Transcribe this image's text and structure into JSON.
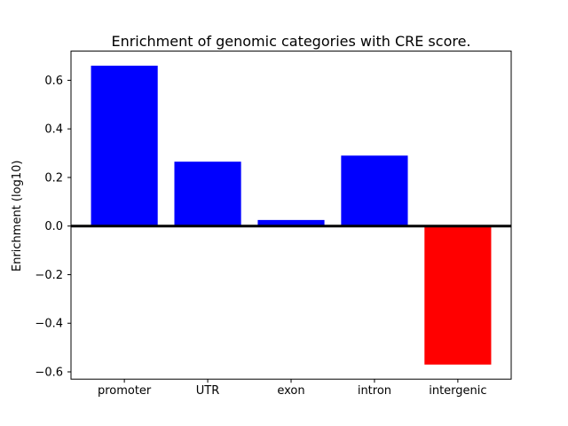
{
  "figure": {
    "background": "#ffffff"
  },
  "chart_data": {
    "type": "bar",
    "title": "Enrichment of genomic categories with CRE score.",
    "xlabel": "",
    "ylabel": "Enrichment (log10)",
    "categories": [
      "promoter",
      "UTR",
      "exon",
      "intron",
      "intergenic"
    ],
    "values": [
      0.66,
      0.265,
      0.025,
      0.29,
      -0.57
    ],
    "bar_colors": [
      "#0000ff",
      "#0000ff",
      "#0000ff",
      "#0000ff",
      "#ff0000"
    ],
    "positive_color": "#0000ff",
    "negative_color": "#ff0000",
    "yticks": [
      -0.6,
      -0.4,
      -0.2,
      0.0,
      0.2,
      0.4,
      0.6
    ],
    "ytick_labels": [
      "−0.6",
      "−0.4",
      "−0.2",
      "0.0",
      "0.2",
      "0.4",
      "0.6"
    ],
    "ylim": [
      -0.63,
      0.72
    ],
    "xlim": [
      -0.64,
      4.64
    ],
    "bar_width": 0.8,
    "zero_line": {
      "value": 0.0,
      "color": "#000000"
    },
    "grid": false,
    "legend": null,
    "axis_color": "#000000",
    "text_color": "#000000"
  }
}
